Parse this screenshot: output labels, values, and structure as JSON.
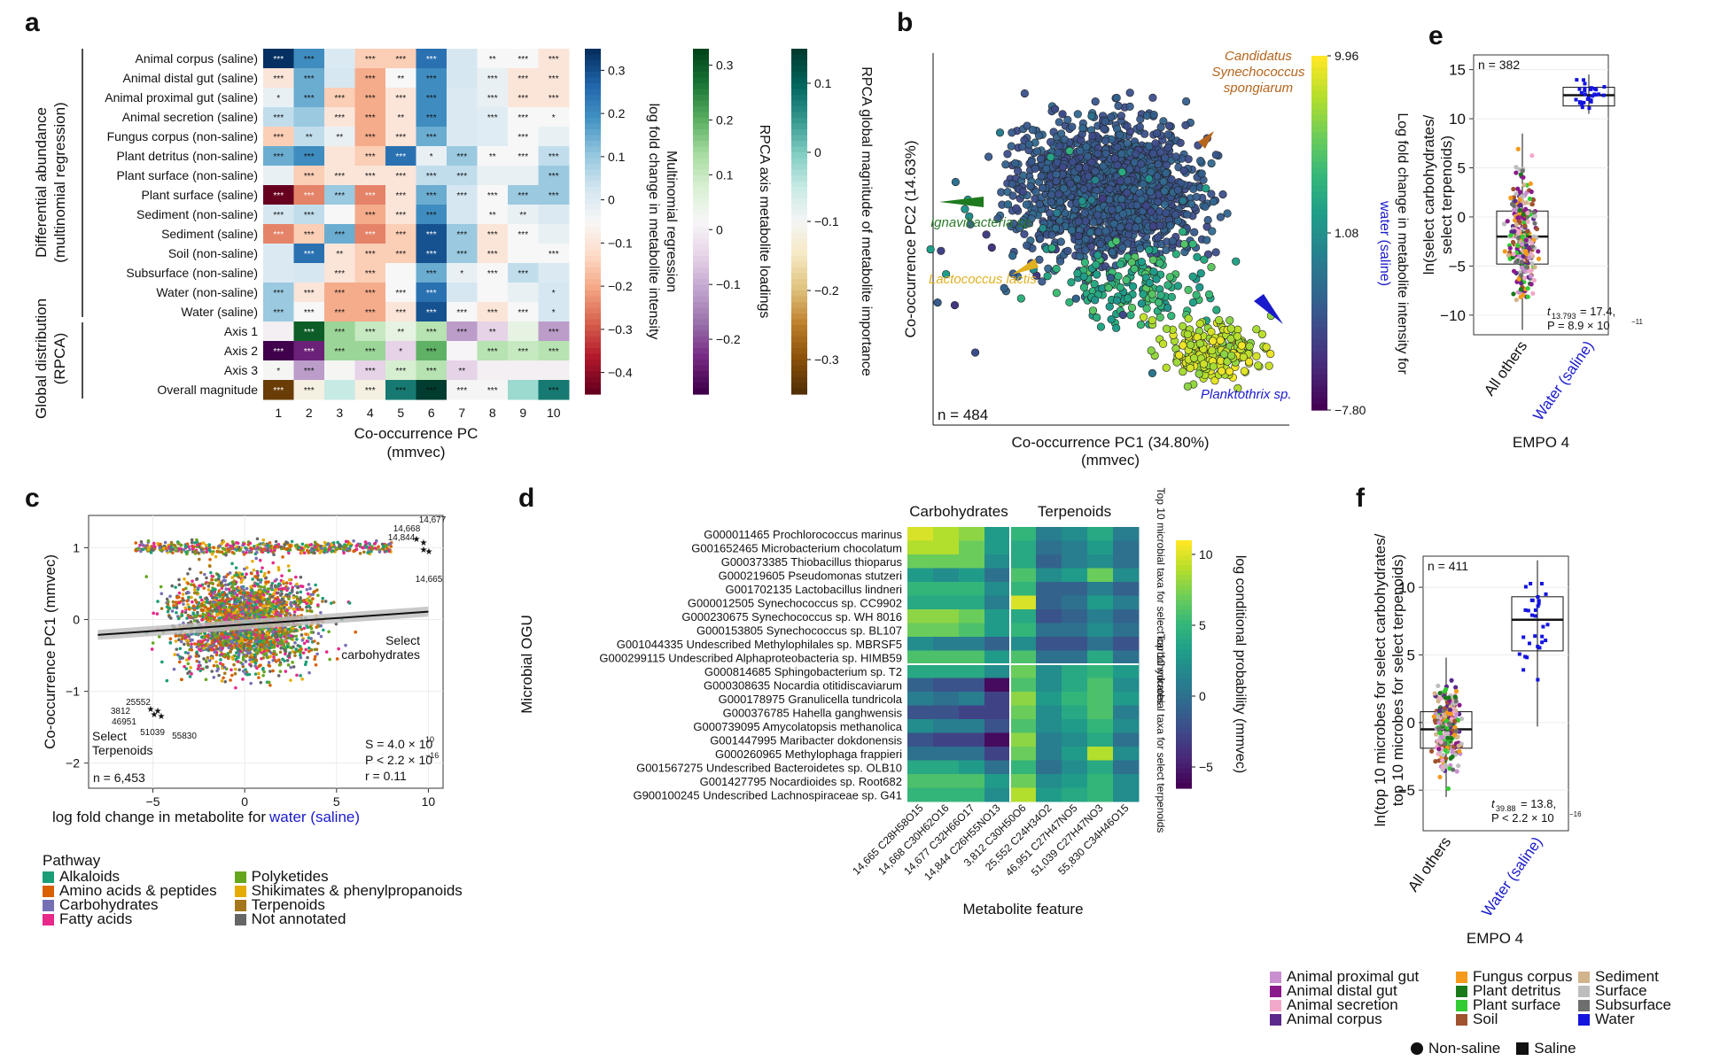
{
  "panel_labels": [
    "a",
    "b",
    "c",
    "d",
    "e",
    "f"
  ],
  "chart_data": [
    {
      "panel": "a",
      "type": "heatmap",
      "rows": [
        "Animal corpus (saline)",
        "Animal distal gut (saline)",
        "Animal proximal gut (saline)",
        "Animal secretion (saline)",
        "Fungus corpus (non-saline)",
        "Plant detritus (non-saline)",
        "Plant surface (non-saline)",
        "Plant surface (saline)",
        "Sediment (non-saline)",
        "Sediment (saline)",
        "Soil (non-saline)",
        "Subsurface (non-saline)",
        "Water (non-saline)",
        "Water (saline)",
        "Axis 1",
        "Axis 2",
        "Axis 3",
        "Overall magnitude"
      ],
      "columns": [
        "1",
        "2",
        "3",
        "4",
        "5",
        "6",
        "7",
        "8",
        "9",
        "10"
      ],
      "row_group_labels": [
        "Differential abundance (multinomial regression)",
        "Global distribution (RPCA)"
      ],
      "values": [
        [
          0.35,
          0.2,
          0.01,
          -0.15,
          -0.15,
          0.25,
          0.02,
          -0.05,
          -0.05,
          -0.1
        ],
        [
          -0.1,
          0.15,
          0.02,
          -0.2,
          -0.05,
          0.2,
          0.02,
          -0.02,
          -0.1,
          -0.1
        ],
        [
          -0.02,
          0.15,
          -0.15,
          -0.2,
          -0.1,
          0.2,
          0.01,
          -0.02,
          -0.1,
          -0.1
        ],
        [
          0.05,
          0.1,
          -0.1,
          -0.2,
          -0.1,
          0.2,
          0.01,
          0.0,
          -0.05,
          -0.05
        ],
        [
          -0.15,
          0.05,
          -0.02,
          -0.2,
          -0.1,
          0.15,
          0.01,
          0.0,
          -0.05,
          -0.02
        ],
        [
          0.15,
          0.2,
          -0.1,
          -0.15,
          0.25,
          -0.02,
          0.1,
          -0.05,
          -0.05,
          0.05
        ],
        [
          -0.02,
          -0.15,
          -0.1,
          -0.1,
          -0.1,
          0.05,
          0.05,
          -0.02,
          -0.02,
          0.1
        ],
        [
          -0.45,
          -0.25,
          0.1,
          -0.25,
          -0.1,
          0.15,
          0.02,
          -0.05,
          0.1,
          0.1
        ],
        [
          0.02,
          0.05,
          -0.05,
          -0.2,
          -0.1,
          0.2,
          0.02,
          -0.05,
          -0.02,
          0.01
        ],
        [
          -0.25,
          -0.15,
          0.15,
          -0.25,
          -0.15,
          0.3,
          0.1,
          -0.1,
          -0.05,
          -0.02
        ],
        [
          0.01,
          0.25,
          -0.1,
          -0.15,
          -0.15,
          0.3,
          0.1,
          -0.1,
          -0.05,
          -0.05
        ],
        [
          0.01,
          0.02,
          -0.1,
          -0.15,
          -0.05,
          0.15,
          -0.02,
          -0.05,
          0.05,
          0.01
        ],
        [
          0.1,
          -0.1,
          -0.2,
          -0.2,
          -0.05,
          0.25,
          0.02,
          -0.05,
          -0.02,
          0.02
        ],
        [
          0.1,
          -0.05,
          -0.2,
          -0.2,
          -0.1,
          0.3,
          -0.05,
          -0.1,
          -0.05,
          0.02
        ],
        [
          0.0,
          0.3,
          0.15,
          0.1,
          0.05,
          0.12,
          -0.12,
          -0.05,
          0.05,
          -0.12
        ],
        [
          -0.3,
          -0.25,
          0.15,
          0.15,
          -0.05,
          0.2,
          0.01,
          0.12,
          0.1,
          0.12
        ],
        [
          0.02,
          -0.12,
          0.02,
          -0.05,
          0.08,
          0.12,
          -0.05,
          0.0,
          0.0,
          0.0
        ],
        [
          -0.33,
          -0.12,
          -0.05,
          -0.12,
          0.08,
          0.15,
          -0.1,
          -0.1,
          -0.02,
          0.08
        ]
      ],
      "stars": [
        [
          "***",
          "***",
          "",
          "***",
          "***",
          "***",
          "",
          "**",
          "***",
          "***"
        ],
        [
          "***",
          "***",
          "",
          "***",
          "**",
          "***",
          "",
          "***",
          "***",
          "***"
        ],
        [
          "*",
          "***",
          "***",
          "***",
          "***",
          "***",
          "",
          "***",
          "***",
          "***"
        ],
        [
          "***",
          "",
          "***",
          "***",
          "**",
          "***",
          "",
          "***",
          "***",
          "*"
        ],
        [
          "***",
          "**",
          "**",
          "***",
          "***",
          "***",
          "",
          "",
          "***",
          ""
        ],
        [
          "***",
          "***",
          "",
          "***",
          "***",
          "*",
          "***",
          "**",
          "***",
          "***"
        ],
        [
          "",
          "***",
          "***",
          "***",
          "***",
          "***",
          "***",
          "",
          "",
          "***"
        ],
        [
          "***",
          "***",
          "***",
          "***",
          "***",
          "***",
          "***",
          "***",
          "***",
          "***"
        ],
        [
          "***",
          "***",
          "",
          "***",
          "***",
          "***",
          "",
          "**",
          "**",
          ""
        ],
        [
          "***",
          "***",
          "***",
          "***",
          "***",
          "***",
          "***",
          "***",
          "***",
          ""
        ],
        [
          "",
          "***",
          "**",
          "***",
          "***",
          "***",
          "***",
          "***",
          "",
          "***"
        ],
        [
          "",
          "",
          "***",
          "***",
          "",
          "***",
          "*",
          "***",
          "***",
          ""
        ],
        [
          "***",
          "***",
          "***",
          "***",
          "***",
          "***",
          "",
          "",
          "",
          "*"
        ],
        [
          "***",
          "***",
          "***",
          "***",
          "***",
          "***",
          "***",
          "***",
          "***",
          "*"
        ],
        [
          "",
          "***",
          "***",
          "***",
          "**",
          "***",
          "***",
          "**",
          "",
          "***"
        ],
        [
          "***",
          "***",
          "***",
          "***",
          "*",
          "***",
          "",
          "***",
          "***",
          "***"
        ],
        [
          "*",
          "***",
          "",
          "***",
          "***",
          "***",
          "**",
          "",
          "",
          ""
        ],
        [
          "***",
          "***",
          "",
          "***",
          "***",
          "***",
          "***",
          "***",
          "",
          "***"
        ]
      ],
      "xlabel": "Co-occurrence PC",
      "xlabel_sub": "(mmvec)",
      "colorbars": [
        {
          "title": "Multinomial regression",
          "title2": "log fold change in metabolite intensity",
          "ticks": [
            "0.3",
            "0.2",
            "0.1",
            "0",
            "−0.1",
            "−0.2",
            "−0.3",
            "−0.4"
          ],
          "range": [
            -0.45,
            0.35
          ]
        },
        {
          "title": "RPCA axis metabolite loadings",
          "ticks": [
            "0.3",
            "0.2",
            "0.1",
            "0",
            "−0.1",
            "−0.2"
          ],
          "range": [
            -0.3,
            0.33
          ]
        },
        {
          "title": "RPCA global magnitude of metabolite importance",
          "ticks": [
            "0.1",
            "0",
            "−0.1",
            "−0.2",
            "−0.3"
          ],
          "range": [
            -0.35,
            0.15
          ]
        }
      ]
    },
    {
      "panel": "b",
      "type": "scatter",
      "xlabel": "Co-occurrence PC1 (34.80%)",
      "xlabel_sub": "(mmvec)",
      "ylabel": "Co-occurrence PC2 (14.63%)",
      "n_label": "n = 484",
      "colorbar": {
        "title": "Log fold change in metabolite intensity for",
        "title_highlight": "water (saline)",
        "ticks": [
          "9.96",
          "1.08",
          "−7.80"
        ],
        "range": [
          -7.8,
          9.96
        ]
      },
      "annotations": [
        "Candidatus",
        "Synechococcus",
        "spongiarum",
        "Ignavibacteria sp.",
        "Lactococcus lactis",
        "Planktothrix sp."
      ],
      "annotation_colors": [
        "#b5651d",
        "#2a7a2a",
        "#e0b020",
        "#1a1acc"
      ]
    },
    {
      "panel": "c",
      "type": "scatter",
      "xlabel": "log fold change in metabolite for",
      "xlabel_highlight": "water (saline)",
      "ylabel": "Co-occurrence PC1 (mmvec)",
      "xticks": [
        "−5",
        "0",
        "5",
        "10"
      ],
      "yticks": [
        "1",
        "0",
        "−1",
        "−2"
      ],
      "xlim": [
        -8.5,
        10.8
      ],
      "ylim": [
        -2.35,
        1.45
      ],
      "trend": {
        "slope": 0.018,
        "intercept": -0.07
      },
      "n_label": "n = 6,453",
      "stats": [
        "S = 4.0 × 10",
        "10",
        "P < 2.2 × 10",
        "−16",
        "r = 0.11"
      ],
      "labels_top": [
        "14,677",
        "14,668",
        "14,844",
        "14,665",
        "Select",
        "carbohydrates"
      ],
      "labels_bottom": [
        "25552",
        "3812",
        "46951",
        "51039",
        "55830",
        "Select",
        "Terpenoids"
      ],
      "legend_title": "Pathway",
      "pathways": [
        {
          "name": "Alkaloids",
          "color": "#1b9e77"
        },
        {
          "name": "Amino acids & peptides",
          "color": "#d95f02"
        },
        {
          "name": "Carbohydrates",
          "color": "#7570b3"
        },
        {
          "name": "Fatty acids",
          "color": "#e7298a"
        },
        {
          "name": "Polyketides",
          "color": "#66a61e"
        },
        {
          "name": "Shikimates & phenylpropanoids",
          "color": "#e6ab02"
        },
        {
          "name": "Terpenoids",
          "color": "#a6761d"
        },
        {
          "name": "Not annotated",
          "color": "#666666"
        }
      ]
    },
    {
      "panel": "d",
      "type": "heatmap",
      "ylabel": "Microbial OGU",
      "xlabel": "Metabolite feature",
      "group_labels": [
        "Carbohydrates",
        "Terpenoids"
      ],
      "row_block_labels": [
        "Top 10 microbial taxa for select carbohydrates",
        "Top 10 microbial taxa for select terpenoids"
      ],
      "rows": [
        {
          "id": "G000011465",
          "name": "Prochlorococcus marinus"
        },
        {
          "id": "G001652465",
          "name": "Microbacterium chocolatum"
        },
        {
          "id": "G000373385",
          "name": "Thiobacillus thioparus"
        },
        {
          "id": "G000219605",
          "name": "Pseudomonas stutzeri"
        },
        {
          "id": "G001702135",
          "name": "Lactobacillus lindneri"
        },
        {
          "id": "G000012505",
          "name": "Synechococcus sp. CC9902"
        },
        {
          "id": "G000230675",
          "name": "Synechococcus sp. WH 8016"
        },
        {
          "id": "G000153805",
          "name": "Synechococcus sp. BL107"
        },
        {
          "id": "G001044335",
          "name": "Undescribed Methylophilales sp. MBRSF5"
        },
        {
          "id": "G000299115",
          "name": "Undescribed Alphaproteobacteria sp. HIMB59"
        },
        {
          "id": "G000814685",
          "name": "Sphingobacterium sp. T2"
        },
        {
          "id": "G000308635",
          "name": "Nocardia otitidiscaviarum"
        },
        {
          "id": "G000178975",
          "name": "Granulicella tundricola"
        },
        {
          "id": "G000376785",
          "name": "Hahella ganghwensis"
        },
        {
          "id": "G000739095",
          "name": "Amycolatopsis methanolica"
        },
        {
          "id": "G001447995",
          "name": "Maribacter dokdonensis"
        },
        {
          "id": "G000260965",
          "name": "Methylophaga frappieri"
        },
        {
          "id": "G001567275",
          "name": "Undescribed Bacteroidetes sp. OLB10"
        },
        {
          "id": "G001427795",
          "name": "Nocardioides sp. Root682"
        },
        {
          "id": "G900100245",
          "name": "Undescribed Lachnospiraceae sp. G41"
        }
      ],
      "columns": [
        "14,665 C28H58O15",
        "14,668 C30H62O16",
        "14,677 C32H66O17",
        "14,844 C26H55NO13",
        "3,812 C30H50O6",
        "25,552 C24H34O2",
        "46,951 C27H47NO5",
        "51,039 C27H47NO3",
        "55,830 C34H46O15"
      ],
      "values": [
        [
          10,
          9,
          8,
          3,
          5,
          1,
          2,
          4,
          1
        ],
        [
          9,
          9,
          7,
          3,
          4,
          0,
          1,
          3,
          0
        ],
        [
          7,
          7,
          7,
          2,
          4,
          -1,
          1,
          2,
          0
        ],
        [
          3,
          2,
          3,
          0,
          6,
          2,
          3,
          7,
          2
        ],
        [
          5,
          5,
          5,
          2,
          5,
          -1,
          -1,
          1,
          -1
        ],
        [
          4,
          4,
          4,
          1,
          10,
          -1,
          0,
          3,
          1
        ],
        [
          8,
          8,
          7,
          3,
          4,
          -2,
          -1,
          1,
          -1
        ],
        [
          7,
          7,
          6,
          3,
          5,
          0,
          0,
          2,
          0
        ],
        [
          2,
          1,
          1,
          -1,
          2,
          -2,
          -2,
          0,
          -2
        ],
        [
          6,
          6,
          6,
          3,
          6,
          0,
          0,
          4,
          0
        ],
        [
          4,
          4,
          4,
          2,
          7,
          2,
          4,
          5,
          3
        ],
        [
          -1,
          -2,
          -2,
          -6,
          6,
          2,
          4,
          6,
          2
        ],
        [
          1,
          0,
          1,
          -3,
          8,
          3,
          5,
          6,
          3
        ],
        [
          -2,
          -2,
          -3,
          -3,
          7,
          2,
          4,
          6,
          1
        ],
        [
          2,
          1,
          1,
          -2,
          6,
          2,
          3,
          5,
          2
        ],
        [
          -2,
          -3,
          -3,
          -6,
          8,
          1,
          2,
          4,
          0
        ],
        [
          0,
          0,
          0,
          -3,
          7,
          1,
          3,
          9,
          2
        ],
        [
          4,
          4,
          3,
          0,
          5,
          0,
          2,
          4,
          0
        ],
        [
          6,
          6,
          6,
          3,
          7,
          2,
          3,
          5,
          2
        ],
        [
          5,
          5,
          5,
          2,
          9,
          3,
          4,
          5,
          2
        ]
      ],
      "colorbar": {
        "title": "log conditional probability (mmvec)",
        "ticks": [
          "10",
          "5",
          "0",
          "−5"
        ],
        "range": [
          -6.5,
          11
        ]
      }
    },
    {
      "panel": "e",
      "type": "box",
      "ylabel": "ln(select carbohydrates/ select terpenoids)",
      "xlabel": "EMPO 4",
      "categories": [
        "All others",
        "Water (saline)"
      ],
      "n_label": "n = 382",
      "yticks": [
        "15",
        "10",
        "5",
        "0",
        "−5",
        "−10"
      ],
      "ylim": [
        -12,
        16.5
      ],
      "boxes": [
        {
          "q1": -4.8,
          "median": -2.0,
          "q3": 0.6,
          "whisker_low": -11.5,
          "whisker_high": 8.5
        },
        {
          "q1": 11.3,
          "median": 12.4,
          "q3": 13.2,
          "whisker_low": 10.5,
          "whisker_high": 14.5
        }
      ],
      "stat": [
        "t",
        "13.793",
        " = 17.4,",
        "P = 8.9 × 10",
        "−11"
      ]
    },
    {
      "panel": "f",
      "type": "box",
      "ylabel": "ln(top 10 microbes for select carbohydrates/ top 10 microbes for select terpenoids)",
      "xlabel": "EMPO 4",
      "categories": [
        "All others",
        "Water (saline)"
      ],
      "n_label": "n = 411",
      "yticks": [
        "10",
        "5",
        "0",
        "−5"
      ],
      "ylim": [
        -8,
        12.3
      ],
      "boxes": [
        {
          "q1": -1.9,
          "median": -0.5,
          "q3": 0.8,
          "whisker_low": -5.5,
          "whisker_high": 4.8
        },
        {
          "q1": 5.3,
          "median": 7.6,
          "q3": 9.3,
          "whisker_low": -0.3,
          "whisker_high": 12.0
        }
      ],
      "stat": [
        "t",
        "39.88",
        " = 13.8,",
        "P < 2.2 × 10",
        "−16"
      ]
    }
  ],
  "empo_legend": [
    {
      "name": "Animal proximal gut",
      "color": "#c98fd0"
    },
    {
      "name": "Animal distal gut",
      "color": "#8b1a8b"
    },
    {
      "name": "Animal secretion",
      "color": "#f2a9c9"
    },
    {
      "name": "Animal corpus",
      "color": "#5b2a8a"
    },
    {
      "name": "Fungus corpus",
      "color": "#f59a1a"
    },
    {
      "name": "Plant detritus",
      "color": "#1a7a1a"
    },
    {
      "name": "Plant surface",
      "color": "#33cc33"
    },
    {
      "name": "Soil",
      "color": "#a0522d"
    },
    {
      "name": "Sediment",
      "color": "#d2b48c"
    },
    {
      "name": "Surface",
      "color": "#bdbdbd"
    },
    {
      "name": "Subsurface",
      "color": "#6e6e6e"
    },
    {
      "name": "Water",
      "color": "#1414e0"
    }
  ],
  "shape_legend": [
    "Non-saline",
    "Saline"
  ],
  "colors": {
    "highlight_blue": "#1a1acc"
  }
}
